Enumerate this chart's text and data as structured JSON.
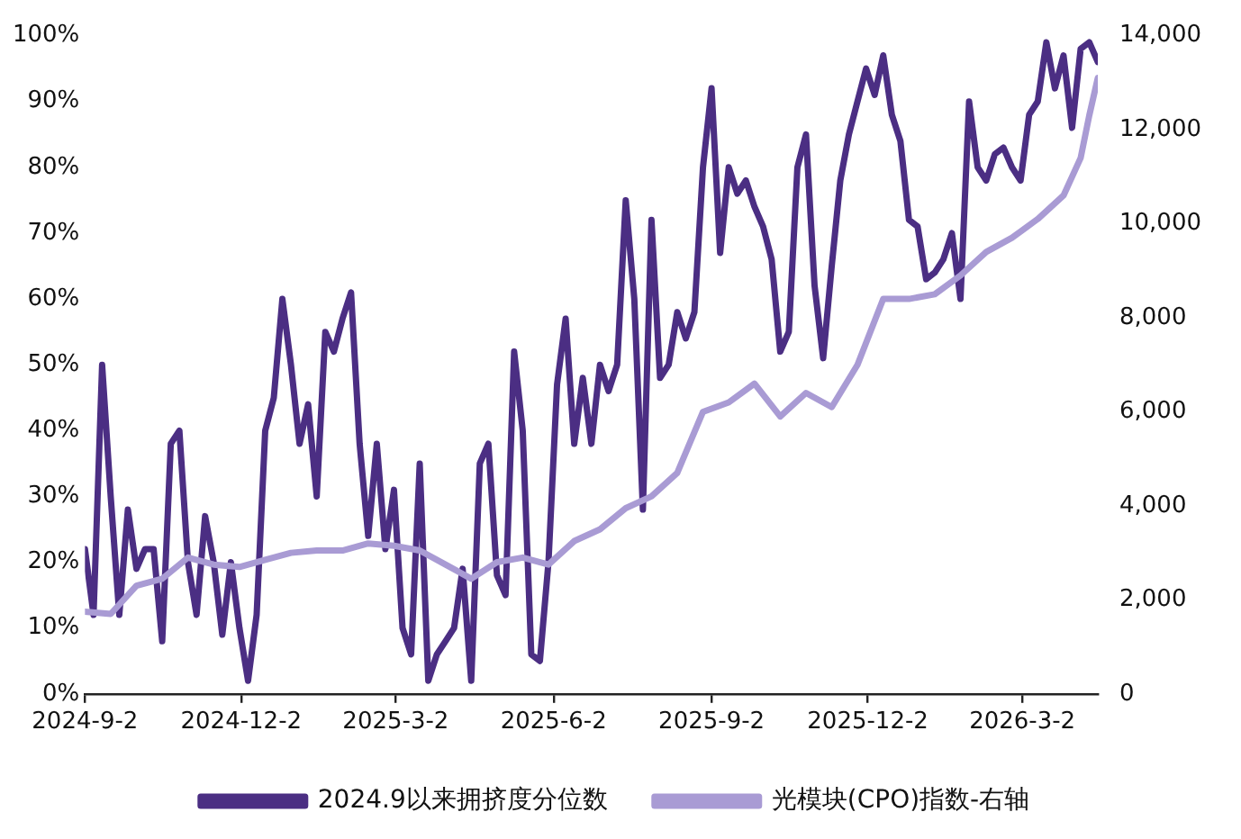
{
  "chart_data": {
    "type": "line",
    "legend": "bottom",
    "grid": false,
    "marker": "none",
    "line_style": "solid",
    "xlim": [
      "2024-09-02",
      "2026-04-15"
    ],
    "xticks": [
      {
        "value": "2024-09-02",
        "label": "2024-9-2"
      },
      {
        "value": "2024-12-02",
        "label": "2024-12-2"
      },
      {
        "value": "2025-03-02",
        "label": "2025-3-2"
      },
      {
        "value": "2025-06-02",
        "label": "2025-6-2"
      },
      {
        "value": "2025-09-02",
        "label": "2025-9-2"
      },
      {
        "value": "2025-12-02",
        "label": "2025-12-2"
      },
      {
        "value": "2026-03-02",
        "label": "2026-3-2"
      }
    ],
    "ylim": [
      0,
      100
    ],
    "yticks": [
      {
        "value": 0,
        "label": "0%"
      },
      {
        "value": 10,
        "label": "10%"
      },
      {
        "value": 20,
        "label": "20%"
      },
      {
        "value": 30,
        "label": "30%"
      },
      {
        "value": 40,
        "label": "40%"
      },
      {
        "value": 50,
        "label": "50%"
      },
      {
        "value": 60,
        "label": "60%"
      },
      {
        "value": 70,
        "label": "70%"
      },
      {
        "value": 80,
        "label": "80%"
      },
      {
        "value": 90,
        "label": "90%"
      },
      {
        "value": 100,
        "label": "100%"
      }
    ],
    "y2lim": [
      0,
      14000
    ],
    "y2ticks": [
      0,
      {
        "value": 2000,
        "label": "2,000"
      },
      {
        "value": 4000,
        "label": "4,000"
      },
      {
        "value": 6000,
        "label": "6,000"
      },
      {
        "value": 8000,
        "label": "8,000"
      },
      {
        "value": 10000,
        "label": "10,000"
      },
      {
        "value": 12000,
        "label": "12,000"
      },
      {
        "value": 14000,
        "label": "14,000"
      }
    ],
    "series": [
      {
        "name": "2024.9以来拥挤度分位数",
        "color": "#4b2e83",
        "x": [
          "2024-09-02",
          "2024-09-07",
          "2024-09-12",
          "2024-09-17",
          "2024-09-22",
          "2024-09-27",
          "2024-10-02",
          "2024-10-07",
          "2024-10-12",
          "2024-10-17",
          "2024-10-22",
          "2024-10-27",
          "2024-11-01",
          "2024-11-06",
          "2024-11-11",
          "2024-11-16",
          "2024-11-21",
          "2024-11-26",
          "2024-12-01",
          "2024-12-06",
          "2024-12-11",
          "2024-12-16",
          "2024-12-21",
          "2024-12-26",
          "2024-12-31",
          "2025-01-05",
          "2025-01-10",
          "2025-01-15",
          "2025-01-20",
          "2025-01-25",
          "2025-01-30",
          "2025-02-04",
          "2025-02-09",
          "2025-02-14",
          "2025-02-19",
          "2025-02-24",
          "2025-03-01",
          "2025-03-06",
          "2025-03-11",
          "2025-03-16",
          "2025-03-21",
          "2025-03-26",
          "2025-03-31",
          "2025-04-05",
          "2025-04-10",
          "2025-04-15",
          "2025-04-20",
          "2025-04-25",
          "2025-04-30",
          "2025-05-05",
          "2025-05-10",
          "2025-05-15",
          "2025-05-20",
          "2025-05-25",
          "2025-05-30",
          "2025-06-04",
          "2025-06-09",
          "2025-06-14",
          "2025-06-19",
          "2025-06-24",
          "2025-06-29",
          "2025-07-04",
          "2025-07-09",
          "2025-07-14",
          "2025-07-19",
          "2025-07-24",
          "2025-07-29",
          "2025-08-03",
          "2025-08-08",
          "2025-08-13",
          "2025-08-18",
          "2025-08-23",
          "2025-08-28",
          "2025-09-02",
          "2025-09-07",
          "2025-09-12",
          "2025-09-17",
          "2025-09-22",
          "2025-09-27",
          "2025-10-02",
          "2025-10-07",
          "2025-10-12",
          "2025-10-17",
          "2025-10-22",
          "2025-10-27",
          "2025-11-01",
          "2025-11-06",
          "2025-11-11",
          "2025-11-16",
          "2025-11-21",
          "2025-11-26",
          "2025-12-01",
          "2025-12-06",
          "2025-12-11",
          "2025-12-16",
          "2025-12-21",
          "2025-12-26",
          "2025-12-31",
          "2026-01-05",
          "2026-01-10",
          "2026-01-15",
          "2026-01-20",
          "2026-01-25",
          "2026-01-30",
          "2026-02-04",
          "2026-02-09",
          "2026-02-14",
          "2026-02-19",
          "2026-02-24",
          "2026-03-01",
          "2026-03-06",
          "2026-03-11",
          "2026-03-16",
          "2026-03-21",
          "2026-03-26",
          "2026-03-31",
          "2026-04-05",
          "2026-04-10",
          "2026-04-15"
        ],
        "values": [
          22,
          12,
          50,
          30,
          12,
          28,
          19,
          22,
          22,
          8,
          38,
          40,
          20,
          12,
          27,
          20,
          9,
          20,
          10,
          2,
          12,
          40,
          45,
          60,
          50,
          38,
          44,
          30,
          55,
          52,
          57,
          61,
          38,
          24,
          38,
          22,
          31,
          10,
          6,
          35,
          2,
          6,
          8,
          10,
          19,
          2,
          35,
          38,
          18,
          15,
          52,
          40,
          6,
          5,
          20,
          47,
          57,
          38,
          48,
          38,
          50,
          46,
          50,
          75,
          60,
          28,
          72,
          48,
          50,
          58,
          54,
          58,
          80,
          92,
          67,
          80,
          76,
          78,
          74,
          71,
          66,
          52,
          55,
          80,
          85,
          62,
          51,
          65,
          78,
          85,
          90,
          95,
          91,
          97,
          88,
          84,
          72,
          71,
          63,
          64,
          66,
          70,
          60,
          90,
          80,
          78,
          82,
          83,
          80,
          78,
          88,
          90,
          99,
          92,
          97,
          86,
          98,
          99,
          96
        ]
      },
      {
        "name": "光模块(CPO)指数-右轴",
        "color": "#a99bd4",
        "axis": "y2",
        "x": [
          "2024-09-02",
          "2024-09-17",
          "2024-10-02",
          "2024-10-17",
          "2024-11-01",
          "2024-11-16",
          "2024-12-01",
          "2024-12-16",
          "2024-12-31",
          "2025-01-15",
          "2025-01-30",
          "2025-02-14",
          "2025-03-01",
          "2025-03-16",
          "2025-03-31",
          "2025-04-15",
          "2025-04-30",
          "2025-05-15",
          "2025-05-30",
          "2025-06-14",
          "2025-06-29",
          "2025-07-14",
          "2025-07-29",
          "2025-08-13",
          "2025-08-28",
          "2025-09-12",
          "2025-09-27",
          "2025-10-12",
          "2025-10-27",
          "2025-11-11",
          "2025-11-26",
          "2025-12-11",
          "2025-12-26",
          "2026-01-10",
          "2026-01-25",
          "2026-02-09",
          "2026-02-24",
          "2026-03-11",
          "2026-03-26",
          "2026-04-05",
          "2026-04-10",
          "2026-04-15"
        ],
        "values": [
          1750,
          1700,
          2300,
          2450,
          2900,
          2750,
          2700,
          2850,
          3000,
          3050,
          3050,
          3200,
          3150,
          3050,
          2750,
          2450,
          2800,
          2900,
          2750,
          3250,
          3500,
          3950,
          4200,
          4700,
          6000,
          6200,
          6600,
          5900,
          6400,
          6100,
          7000,
          8400,
          8400,
          8500,
          8900,
          9400,
          9700,
          10100,
          10600,
          11400,
          12300,
          13100
        ]
      }
    ]
  }
}
